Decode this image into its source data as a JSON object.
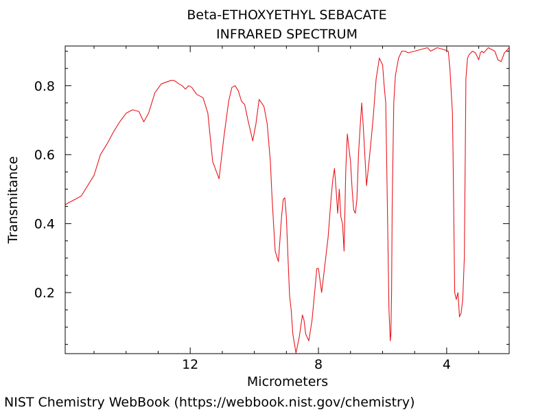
{
  "chart_data": {
    "type": "line",
    "title": "Beta-ETHOXYETHYL SEBACATE",
    "subtitle": "INFRARED SPECTRUM",
    "xlabel": "Micrometers",
    "ylabel": "Transmitance",
    "x_reversed": true,
    "xlim": [
      15.9,
      2.05
    ],
    "ylim": [
      0.023,
      0.915
    ],
    "xticks": [
      {
        "value": 12,
        "label": "12"
      },
      {
        "value": 8,
        "label": "8"
      },
      {
        "value": 4,
        "label": "4"
      }
    ],
    "yticks": [
      {
        "value": 0.2,
        "label": "0.2"
      },
      {
        "value": 0.4,
        "label": "0.4"
      },
      {
        "value": 0.6,
        "label": "0.6"
      },
      {
        "value": 0.8,
        "label": "0.8"
      }
    ],
    "line_color": "#e8141b",
    "grid": false,
    "series": [
      {
        "x": [
          15.9,
          15.6,
          15.4,
          15.2,
          15.0,
          14.8,
          14.6,
          14.4,
          14.2,
          14.0,
          13.8,
          13.6,
          13.45,
          13.3,
          13.1,
          12.9,
          12.7,
          12.6,
          12.5,
          12.35,
          12.25,
          12.15,
          12.05,
          11.95,
          11.8,
          11.7,
          11.6,
          11.45,
          11.3,
          11.1,
          10.95,
          10.8,
          10.7,
          10.6,
          10.5,
          10.4,
          10.3,
          10.2,
          10.05,
          9.95,
          9.85,
          9.7,
          9.6,
          9.5,
          9.45,
          9.4,
          9.35,
          9.25,
          9.15,
          9.1,
          9.05,
          9.0,
          8.95,
          8.9,
          8.85,
          8.8,
          8.7,
          8.6,
          8.5,
          8.45,
          8.4,
          8.3,
          8.2,
          8.1,
          8.05,
          8.0,
          7.9,
          7.8,
          7.7,
          7.6,
          7.55,
          7.5,
          7.45,
          7.4,
          7.35,
          7.3,
          7.25,
          7.2,
          7.15,
          7.1,
          7.05,
          7.0,
          6.95,
          6.9,
          6.85,
          6.8,
          6.75,
          6.7,
          6.65,
          6.6,
          6.5,
          6.4,
          6.3,
          6.2,
          6.1,
          6.0,
          5.95,
          5.9,
          5.85,
          5.8,
          5.76,
          5.74,
          5.72,
          5.7,
          5.65,
          5.6,
          5.5,
          5.4,
          5.3,
          5.2,
          5.0,
          4.8,
          4.6,
          4.5,
          4.3,
          4.1,
          3.95,
          3.9,
          3.85,
          3.82,
          3.8,
          3.75,
          3.7,
          3.65,
          3.6,
          3.55,
          3.5,
          3.45,
          3.42,
          3.4,
          3.35,
          3.3,
          3.2,
          3.1,
          3.0,
          2.95,
          2.9,
          2.85,
          2.8,
          2.7,
          2.6,
          2.5,
          2.4,
          2.3,
          2.2,
          2.1,
          2.05
        ],
        "y": [
          0.455,
          0.47,
          0.48,
          0.51,
          0.54,
          0.6,
          0.63,
          0.665,
          0.695,
          0.72,
          0.73,
          0.725,
          0.695,
          0.72,
          0.78,
          0.805,
          0.812,
          0.815,
          0.815,
          0.805,
          0.8,
          0.79,
          0.8,
          0.795,
          0.775,
          0.77,
          0.765,
          0.72,
          0.58,
          0.53,
          0.65,
          0.755,
          0.795,
          0.8,
          0.785,
          0.755,
          0.745,
          0.7,
          0.64,
          0.69,
          0.76,
          0.74,
          0.69,
          0.58,
          0.48,
          0.4,
          0.32,
          0.29,
          0.42,
          0.47,
          0.475,
          0.42,
          0.3,
          0.19,
          0.15,
          0.08,
          0.025,
          0.07,
          0.135,
          0.12,
          0.08,
          0.06,
          0.12,
          0.22,
          0.27,
          0.27,
          0.2,
          0.28,
          0.36,
          0.48,
          0.53,
          0.56,
          0.5,
          0.43,
          0.5,
          0.42,
          0.4,
          0.32,
          0.55,
          0.66,
          0.62,
          0.58,
          0.5,
          0.44,
          0.43,
          0.47,
          0.6,
          0.68,
          0.75,
          0.68,
          0.51,
          0.6,
          0.7,
          0.82,
          0.88,
          0.86,
          0.8,
          0.75,
          0.45,
          0.15,
          0.06,
          0.08,
          0.2,
          0.45,
          0.75,
          0.83,
          0.88,
          0.9,
          0.9,
          0.895,
          0.9,
          0.905,
          0.91,
          0.9,
          0.91,
          0.905,
          0.9,
          0.85,
          0.77,
          0.72,
          0.6,
          0.2,
          0.18,
          0.2,
          0.13,
          0.14,
          0.18,
          0.3,
          0.6,
          0.82,
          0.88,
          0.89,
          0.9,
          0.895,
          0.875,
          0.895,
          0.9,
          0.895,
          0.9,
          0.91,
          0.905,
          0.9,
          0.875,
          0.87,
          0.895,
          0.905,
          0.91
        ]
      }
    ]
  },
  "footer": "NIST Chemistry WebBook (https://webbook.nist.gov/chemistry)"
}
